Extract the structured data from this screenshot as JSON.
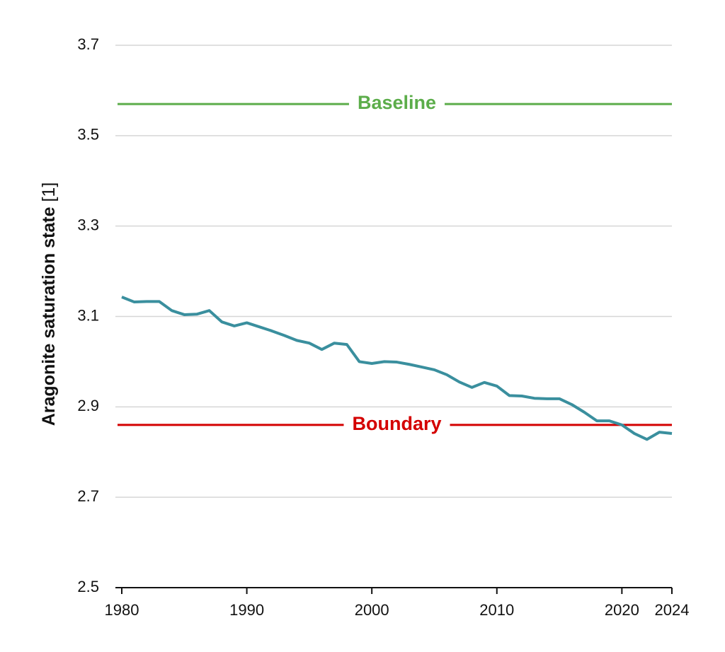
{
  "chart_data": {
    "type": "line",
    "y_label": "Aragonite saturation state",
    "y_unit": "[1]",
    "x": [
      1980,
      1981,
      1982,
      1983,
      1984,
      1985,
      1986,
      1987,
      1988,
      1989,
      1990,
      1991,
      1992,
      1993,
      1994,
      1995,
      1996,
      1997,
      1998,
      1999,
      2000,
      2001,
      2002,
      2003,
      2004,
      2005,
      2006,
      2007,
      2008,
      2009,
      2010,
      2011,
      2012,
      2013,
      2014,
      2015,
      2016,
      2017,
      2018,
      2019,
      2020,
      2021,
      2022,
      2023,
      2024
    ],
    "series": [
      {
        "color": "#3a8f9e",
        "values": [
          3.143,
          3.132,
          3.133,
          3.133,
          3.113,
          3.104,
          3.105,
          3.113,
          3.088,
          3.079,
          3.086,
          3.077,
          3.068,
          3.058,
          3.047,
          3.041,
          3.027,
          3.041,
          3.038,
          3.0,
          2.996,
          3.0,
          2.999,
          2.994,
          2.988,
          2.982,
          2.971,
          2.955,
          2.943,
          2.954,
          2.946,
          2.925,
          2.924,
          2.919,
          2.918,
          2.918,
          2.905,
          2.888,
          2.869,
          2.869,
          2.86,
          2.841,
          2.828,
          2.844,
          2.841
        ]
      }
    ],
    "reference_lines": [
      {
        "label": "Baseline",
        "value": 3.57,
        "color": "#5cad4a"
      },
      {
        "label": "Boundary",
        "value": 2.86,
        "color": "#d40000"
      }
    ],
    "xlim": [
      1980,
      2024
    ],
    "xticks": [
      1980,
      1990,
      2000,
      2010,
      2020,
      2024
    ],
    "ylim": [
      2.5,
      3.7
    ],
    "yticks": [
      2.5,
      2.7,
      2.9,
      3.1,
      3.3,
      3.5,
      3.7
    ],
    "grid": true
  }
}
